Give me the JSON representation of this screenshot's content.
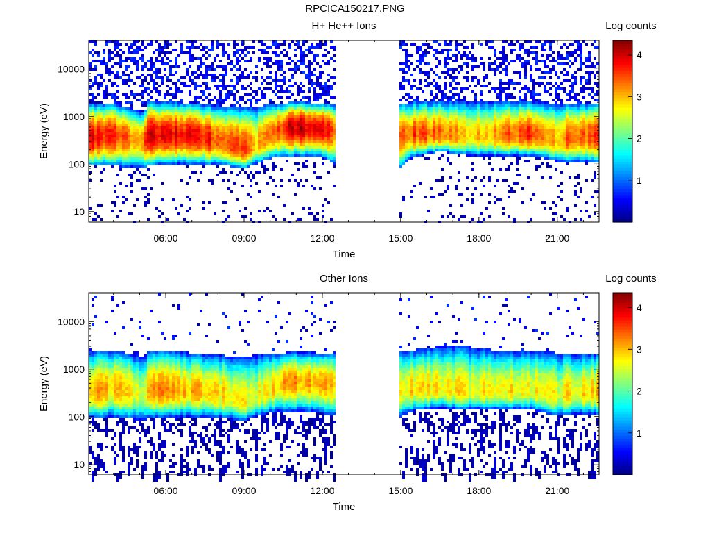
{
  "page_title": "RPCICA150217.PNG",
  "colors": {
    "colormap": [
      "#00007f",
      "#0000ff",
      "#0080ff",
      "#00ffff",
      "#80ff80",
      "#ffff00",
      "#ff8000",
      "#ff0000",
      "#7f0000"
    ],
    "background": "#ffffff",
    "axis": "#000000"
  },
  "chart_data": [
    {
      "type": "heatmap",
      "title": "H+ He++ Ions",
      "xlabel": "Time",
      "ylabel": "Energy (eV)",
      "y_scale": "log",
      "ylim": [
        6,
        40000
      ],
      "xlim_hours": [
        3.05,
        22.6
      ],
      "x_ticks": [
        {
          "v": 6,
          "label": "06:00"
        },
        {
          "v": 9,
          "label": "09:00"
        },
        {
          "v": 12,
          "label": "12:00"
        },
        {
          "v": 15,
          "label": "15:00"
        },
        {
          "v": 18,
          "label": "18:00"
        },
        {
          "v": 21,
          "label": "21:00"
        }
      ],
      "y_ticks": [
        {
          "v": 10,
          "label": "10"
        },
        {
          "v": 100,
          "label": "100"
        },
        {
          "v": 1000,
          "label": "1000"
        },
        {
          "v": 10000,
          "label": "10000"
        }
      ],
      "data_gap_hours": [
        12.5,
        15.0
      ],
      "colorbar": {
        "label": "Log counts",
        "range": [
          0,
          4.35
        ],
        "ticks": [
          1,
          2,
          3,
          4
        ]
      },
      "grid": false,
      "legend": "colorbar right",
      "approx_band": {
        "time_hours": [
          3.1,
          4.0,
          5.2,
          5.3,
          6.0,
          7.0,
          8.0,
          9.0,
          9.5,
          10.0,
          10.5,
          11.0,
          12.0,
          12.5,
          15.0,
          15.5,
          16.5,
          17.5,
          18.5,
          20.0,
          21.0,
          21.5,
          22.6
        ],
        "peak_energy_ev": [
          350,
          400,
          300,
          400,
          400,
          400,
          300,
          200,
          250,
          400,
          550,
          600,
          550,
          500,
          400,
          420,
          420,
          380,
          380,
          420,
          300,
          350,
          400
        ],
        "upper_edge_ev": [
          1800,
          1900,
          1200,
          2000,
          2000,
          1900,
          1700,
          1500,
          1600,
          1800,
          1900,
          2000,
          1900,
          1800,
          1900,
          2000,
          2100,
          2100,
          2100,
          2000,
          1900,
          1900,
          1900
        ],
        "lower_edge_ev": [
          90,
          90,
          80,
          90,
          100,
          100,
          95,
          80,
          100,
          130,
          140,
          150,
          140,
          90,
          80,
          140,
          180,
          150,
          150,
          150,
          110,
          110,
          110
        ],
        "peak_log_counts": [
          3.8,
          3.6,
          3.2,
          3.9,
          3.9,
          3.8,
          3.5,
          3.4,
          3.0,
          3.2,
          3.7,
          4.0,
          4.0,
          3.4,
          3.2,
          3.5,
          3.4,
          3.0,
          3.1,
          3.6,
          3.1,
          3.4,
          3.5
        ]
      }
    },
    {
      "type": "heatmap",
      "title": "Other Ions",
      "xlabel": "Time",
      "ylabel": "Energy (eV)",
      "y_scale": "log",
      "ylim": [
        6,
        40000
      ],
      "xlim_hours": [
        3.05,
        22.6
      ],
      "x_ticks": [
        {
          "v": 6,
          "label": "06:00"
        },
        {
          "v": 9,
          "label": "09:00"
        },
        {
          "v": 12,
          "label": "12:00"
        },
        {
          "v": 15,
          "label": "15:00"
        },
        {
          "v": 18,
          "label": "18:00"
        },
        {
          "v": 21,
          "label": "21:00"
        }
      ],
      "y_ticks": [
        {
          "v": 10,
          "label": "10"
        },
        {
          "v": 100,
          "label": "100"
        },
        {
          "v": 1000,
          "label": "1000"
        },
        {
          "v": 10000,
          "label": "10000"
        }
      ],
      "data_gap_hours": [
        12.5,
        15.0
      ],
      "colorbar": {
        "label": "Log counts",
        "range": [
          0,
          4.35
        ],
        "ticks": [
          1,
          2,
          3,
          4
        ]
      },
      "grid": false,
      "legend": "colorbar right",
      "approx_band": {
        "time_hours": [
          3.1,
          4.0,
          5.2,
          5.3,
          6.0,
          7.0,
          8.0,
          9.0,
          9.5,
          10.0,
          10.5,
          11.0,
          12.0,
          12.5,
          15.0,
          15.5,
          16.5,
          17.5,
          18.5,
          20.0,
          21.0,
          21.5,
          22.6
        ],
        "peak_energy_ev": [
          300,
          380,
          280,
          350,
          350,
          350,
          300,
          200,
          260,
          350,
          500,
          550,
          500,
          450,
          320,
          380,
          380,
          320,
          330,
          350,
          270,
          300,
          330
        ],
        "upper_edge_ev": [
          2500,
          2500,
          1800,
          2500,
          2500,
          2200,
          2000,
          1800,
          2000,
          2200,
          2200,
          2300,
          2200,
          2200,
          2500,
          2500,
          3000,
          3000,
          2500,
          2500,
          2200,
          2200,
          2200
        ],
        "lower_edge_ev": [
          90,
          100,
          80,
          95,
          100,
          100,
          95,
          80,
          100,
          120,
          130,
          130,
          120,
          100,
          100,
          130,
          150,
          140,
          140,
          140,
          100,
          110,
          110
        ],
        "peak_log_counts": [
          3.1,
          3.0,
          2.6,
          3.1,
          3.1,
          3.0,
          2.9,
          2.8,
          2.6,
          2.8,
          3.1,
          3.2,
          3.1,
          2.9,
          2.6,
          2.8,
          2.9,
          2.7,
          2.7,
          2.8,
          2.6,
          2.8,
          2.9
        ]
      }
    }
  ]
}
